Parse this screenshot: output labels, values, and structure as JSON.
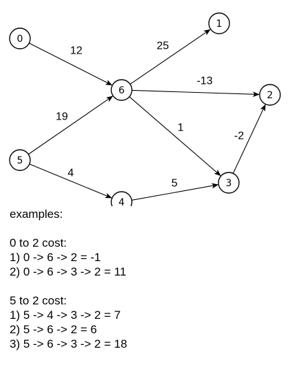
{
  "graph": {
    "nodes": [
      {
        "id": "0",
        "label": "0"
      },
      {
        "id": "1",
        "label": "1"
      },
      {
        "id": "2",
        "label": "2"
      },
      {
        "id": "3",
        "label": "3"
      },
      {
        "id": "4",
        "label": "4"
      },
      {
        "id": "5",
        "label": "5"
      },
      {
        "id": "6",
        "label": "6"
      }
    ],
    "edges": [
      {
        "from": "0",
        "to": "6",
        "weight": "12"
      },
      {
        "from": "6",
        "to": "1",
        "weight": "25"
      },
      {
        "from": "6",
        "to": "2",
        "weight": "-13"
      },
      {
        "from": "5",
        "to": "6",
        "weight": "19"
      },
      {
        "from": "6",
        "to": "3",
        "weight": "1"
      },
      {
        "from": "3",
        "to": "2",
        "weight": "-2"
      },
      {
        "from": "5",
        "to": "4",
        "weight": "4"
      },
      {
        "from": "4",
        "to": "3",
        "weight": "5"
      }
    ]
  },
  "notes": {
    "heading": "examples:",
    "section_a": {
      "title": "0 to 2 cost:",
      "paths": [
        "1) 0 -> 6 -> 2 = -1",
        "2) 0 -> 6 -> 3 -> 2 = 11"
      ]
    },
    "section_b": {
      "title": "5 to 2 cost:",
      "paths": [
        "1) 5 -> 4 -> 3 -> 2 = 7",
        "2) 5 -> 6 -> 2 = 6",
        "3) 5 -> 6 -> 3 -> 2 = 18"
      ]
    }
  }
}
